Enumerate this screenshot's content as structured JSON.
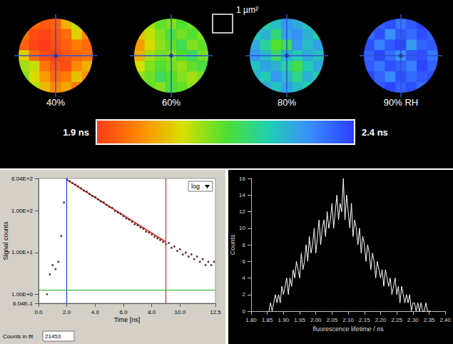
{
  "chart_data": [
    {
      "type": "heatmap",
      "scale_bar": "1 µm²",
      "color_range": [
        1.9,
        2.4
      ],
      "color_ticks": [
        {
          "value": 1.9,
          "label": "1.9 ns"
        },
        {
          "value": 2.4,
          "label": "2.4 ns"
        }
      ],
      "panels": [
        {
          "title": "40%",
          "cells": [
            [
              null,
              1.95,
              1.93,
              1.94,
              2.02,
              2.08,
              null
            ],
            [
              1.96,
              1.92,
              1.91,
              1.93,
              1.95,
              2.05,
              1.98
            ],
            [
              1.94,
              1.91,
              1.9,
              1.92,
              1.94,
              1.97,
              1.95
            ],
            [
              2.05,
              1.95,
              1.92,
              1.91,
              1.93,
              1.95,
              1.96
            ],
            [
              2.1,
              2.08,
              1.96,
              1.93,
              1.92,
              1.98,
              2.02
            ],
            [
              2.12,
              2.06,
              2.0,
              1.95,
              1.97,
              2.04,
              1.99
            ],
            [
              null,
              2.09,
              2.03,
              1.98,
              2.01,
              1.97,
              null
            ]
          ]
        },
        {
          "title": "60%",
          "cells": [
            [
              null,
              2.1,
              2.14,
              2.12,
              2.15,
              2.13,
              null
            ],
            [
              2.04,
              2.08,
              2.12,
              2.16,
              2.13,
              2.15,
              2.12
            ],
            [
              2.0,
              2.06,
              2.11,
              2.14,
              2.17,
              2.12,
              2.14
            ],
            [
              2.02,
              2.1,
              2.13,
              2.12,
              2.15,
              2.18,
              2.13
            ],
            [
              2.07,
              2.12,
              2.15,
              2.13,
              2.11,
              2.14,
              2.16
            ],
            [
              2.11,
              2.13,
              2.18,
              2.15,
              2.12,
              2.1,
              2.13
            ],
            [
              null,
              2.14,
              2.12,
              2.16,
              2.14,
              2.11,
              null
            ]
          ]
        },
        {
          "title": "80%",
          "cells": [
            [
              null,
              2.22,
              2.26,
              2.3,
              2.28,
              2.25,
              null
            ],
            [
              2.24,
              2.27,
              2.2,
              2.29,
              2.31,
              2.27,
              2.23
            ],
            [
              2.28,
              2.22,
              2.15,
              2.18,
              2.3,
              2.26,
              2.29
            ],
            [
              2.3,
              2.26,
              2.19,
              2.27,
              2.24,
              2.28,
              2.25
            ],
            [
              2.25,
              2.29,
              2.27,
              2.22,
              2.17,
              2.24,
              2.28
            ],
            [
              2.27,
              2.24,
              2.3,
              2.26,
              2.21,
              2.27,
              2.24
            ],
            [
              null,
              2.28,
              2.25,
              2.29,
              2.26,
              2.23,
              null
            ]
          ]
        },
        {
          "title": "90% RH",
          "cells": [
            [
              null,
              2.36,
              2.38,
              2.34,
              2.37,
              2.39,
              null
            ],
            [
              2.35,
              2.38,
              2.31,
              2.37,
              2.35,
              2.38,
              2.36
            ],
            [
              2.38,
              2.33,
              2.37,
              2.39,
              2.3,
              2.36,
              2.37
            ],
            [
              2.36,
              2.39,
              2.35,
              2.31,
              2.37,
              2.38,
              2.34
            ],
            [
              2.37,
              2.34,
              2.38,
              2.36,
              2.33,
              2.39,
              2.36
            ],
            [
              2.39,
              2.36,
              2.32,
              2.38,
              2.35,
              2.37,
              2.38
            ],
            [
              null,
              2.37,
              2.39,
              2.36,
              2.38,
              2.35,
              null
            ]
          ]
        }
      ]
    },
    {
      "type": "scatter",
      "xlabel": "Time [ns]",
      "ylabel": "Signal counts",
      "log": "y",
      "xlim": [
        0,
        12.5
      ],
      "xticks": [
        {
          "value": 0,
          "label": "0.0"
        },
        {
          "value": 2,
          "label": "2.0"
        },
        {
          "value": 4,
          "label": "4.0"
        },
        {
          "value": 6,
          "label": "6.0"
        },
        {
          "value": 8,
          "label": "8.0"
        },
        {
          "value": 10,
          "label": "10.0"
        },
        {
          "value": 12.5,
          "label": "12.5"
        }
      ],
      "ylim": [
        0.604,
        604
      ],
      "yticks": [
        {
          "value": 0.604,
          "label": "6.04E-1"
        },
        {
          "value": 1,
          "label": "1.00E+0"
        },
        {
          "value": 10,
          "label": "1.00E+1"
        },
        {
          "value": 100,
          "label": "1.00E+2"
        },
        {
          "value": 604,
          "label": "6.04E+2"
        }
      ],
      "scale_menu": "log",
      "fit_counts": {
        "label": "Counts in fit",
        "value": 21453
      },
      "cursors": [
        {
          "x": 2.0,
          "color": "#2040ff"
        },
        {
          "x": 9.0,
          "color": "#e02020"
        },
        {
          "y": 1.25,
          "color": "#20b020"
        }
      ],
      "series": [
        {
          "type": "scatter",
          "color": "#3a1010",
          "marker": "dot",
          "x": [
            0.6,
            0.8,
            1.0,
            1.2,
            1.4,
            1.6,
            1.8,
            2.0,
            2.2,
            2.4,
            2.6,
            2.8,
            3.0,
            3.2,
            3.4,
            3.6,
            3.8,
            4.0,
            4.2,
            4.4,
            4.6,
            4.8,
            5.0,
            5.2,
            5.4,
            5.6,
            5.8,
            6.0,
            6.2,
            6.4,
            6.6,
            6.8,
            7.0,
            7.2,
            7.4,
            7.6,
            7.8,
            8.0,
            8.2,
            8.4,
            8.6,
            8.8,
            9.0,
            9.2,
            9.4,
            9.6,
            9.8,
            10.0,
            10.2,
            10.4,
            10.6,
            10.8,
            11.0,
            11.2,
            11.4,
            11.6,
            11.8,
            12.0,
            12.2,
            12.4
          ],
          "values": [
            1.0,
            3.0,
            5.0,
            4.0,
            6.0,
            25,
            160,
            580,
            520,
            470,
            430,
            390,
            350,
            310,
            290,
            255,
            230,
            215,
            190,
            170,
            160,
            140,
            125,
            118,
            100,
            92,
            85,
            75,
            66,
            62,
            55,
            48,
            45,
            40,
            37,
            32,
            30,
            27,
            24,
            22,
            20,
            18,
            16,
            17,
            13,
            14,
            11,
            12,
            9,
            10,
            8,
            9,
            7,
            8,
            6,
            7,
            5,
            6,
            5,
            6
          ]
        },
        {
          "type": "line",
          "color": "#e02020",
          "line_style": "solid",
          "x": [
            2.0,
            9.0
          ],
          "values": [
            560,
            18
          ]
        }
      ]
    },
    {
      "type": "line",
      "xlabel": "fluorescence lifetime / ns",
      "ylabel": "Counts",
      "color": "#ffffff",
      "xlim": [
        1.8,
        2.4
      ],
      "xticks": [
        {
          "value": 1.8,
          "label": "1.80"
        },
        {
          "value": 1.85,
          "label": "1.85"
        },
        {
          "value": 1.9,
          "label": "1.90"
        },
        {
          "value": 1.95,
          "label": "1.95"
        },
        {
          "value": 2.0,
          "label": "2.00"
        },
        {
          "value": 2.05,
          "label": "2.05"
        },
        {
          "value": 2.1,
          "label": "2.10"
        },
        {
          "value": 2.15,
          "label": "2.15"
        },
        {
          "value": 2.2,
          "label": "2.20"
        },
        {
          "value": 2.25,
          "label": "2.25"
        },
        {
          "value": 2.3,
          "label": "2.30"
        },
        {
          "value": 2.35,
          "label": "2.35"
        },
        {
          "value": 2.4,
          "label": "2.40"
        }
      ],
      "ylim": [
        0,
        16
      ],
      "yticks": [
        0,
        2,
        4,
        6,
        8,
        10,
        12,
        14,
        16
      ],
      "x": [
        1.855,
        1.86,
        1.865,
        1.87,
        1.875,
        1.88,
        1.885,
        1.89,
        1.895,
        1.9,
        1.905,
        1.91,
        1.915,
        1.92,
        1.925,
        1.93,
        1.935,
        1.94,
        1.945,
        1.95,
        1.955,
        1.96,
        1.965,
        1.97,
        1.975,
        1.98,
        1.985,
        1.99,
        1.995,
        2.0,
        2.005,
        2.01,
        2.015,
        2.02,
        2.025,
        2.03,
        2.035,
        2.04,
        2.045,
        2.05,
        2.055,
        2.06,
        2.065,
        2.07,
        2.075,
        2.08,
        2.085,
        2.09,
        2.095,
        2.1,
        2.105,
        2.11,
        2.115,
        2.12,
        2.125,
        2.13,
        2.135,
        2.14,
        2.145,
        2.15,
        2.155,
        2.16,
        2.165,
        2.17,
        2.175,
        2.18,
        2.185,
        2.19,
        2.195,
        2.2,
        2.205,
        2.21,
        2.215,
        2.22,
        2.225,
        2.23,
        2.235,
        2.24,
        2.245,
        2.25,
        2.255,
        2.26,
        2.265,
        2.27,
        2.275,
        2.28,
        2.285,
        2.29,
        2.295,
        2.3,
        2.305,
        2.31,
        2.315,
        2.32,
        2.325,
        2.33,
        2.335,
        2.34,
        2.345,
        2.35,
        2.355
      ],
      "values": [
        0,
        1,
        0,
        1,
        2,
        1,
        2,
        1,
        3,
        2,
        3,
        4,
        2,
        4,
        3,
        5,
        4,
        6,
        5,
        4,
        7,
        5,
        6,
        8,
        6,
        9,
        7,
        8,
        10,
        7,
        9,
        11,
        8,
        10,
        11,
        9,
        12,
        10,
        11,
        13,
        10,
        12,
        14,
        11,
        13,
        12,
        16,
        11,
        14,
        12,
        10,
        13,
        9,
        11,
        10,
        8,
        10,
        7,
        9,
        8,
        6,
        8,
        7,
        5,
        7,
        6,
        4,
        6,
        5,
        4,
        5,
        3,
        5,
        4,
        3,
        4,
        2,
        3,
        4,
        2,
        3,
        1,
        3,
        2,
        1,
        2,
        1,
        2,
        0,
        1,
        1,
        0,
        1,
        0,
        1,
        0,
        0,
        1,
        0,
        0,
        0
      ]
    }
  ]
}
